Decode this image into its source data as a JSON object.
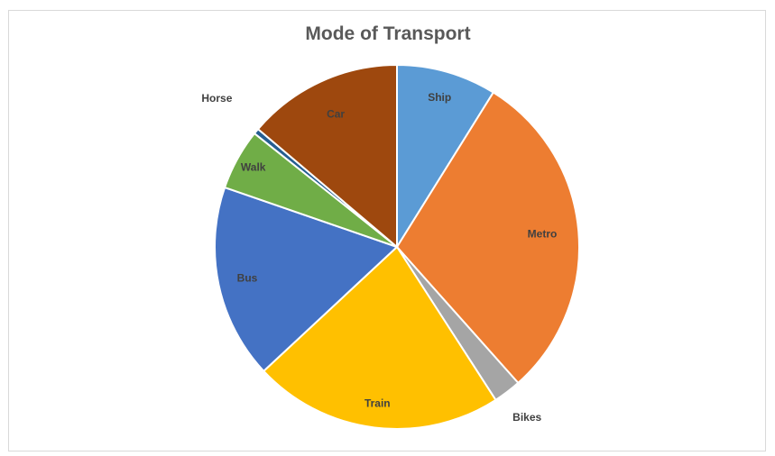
{
  "chart_data": {
    "type": "pie",
    "title": "Mode of Transport",
    "categories": [
      "Ship",
      "Metro",
      "Bikes",
      "Train",
      "Bus",
      "Walk",
      "Horse",
      "Car"
    ],
    "values": [
      9,
      30,
      2.5,
      22.5,
      17.5,
      5.5,
      0.5,
      14
    ],
    "colors": [
      "#5b9bd5",
      "#ed7d31",
      "#a5a5a5",
      "#ffc000",
      "#4472c4",
      "#70ad47",
      "#255e91",
      "#9e480e"
    ],
    "legend": "none"
  }
}
